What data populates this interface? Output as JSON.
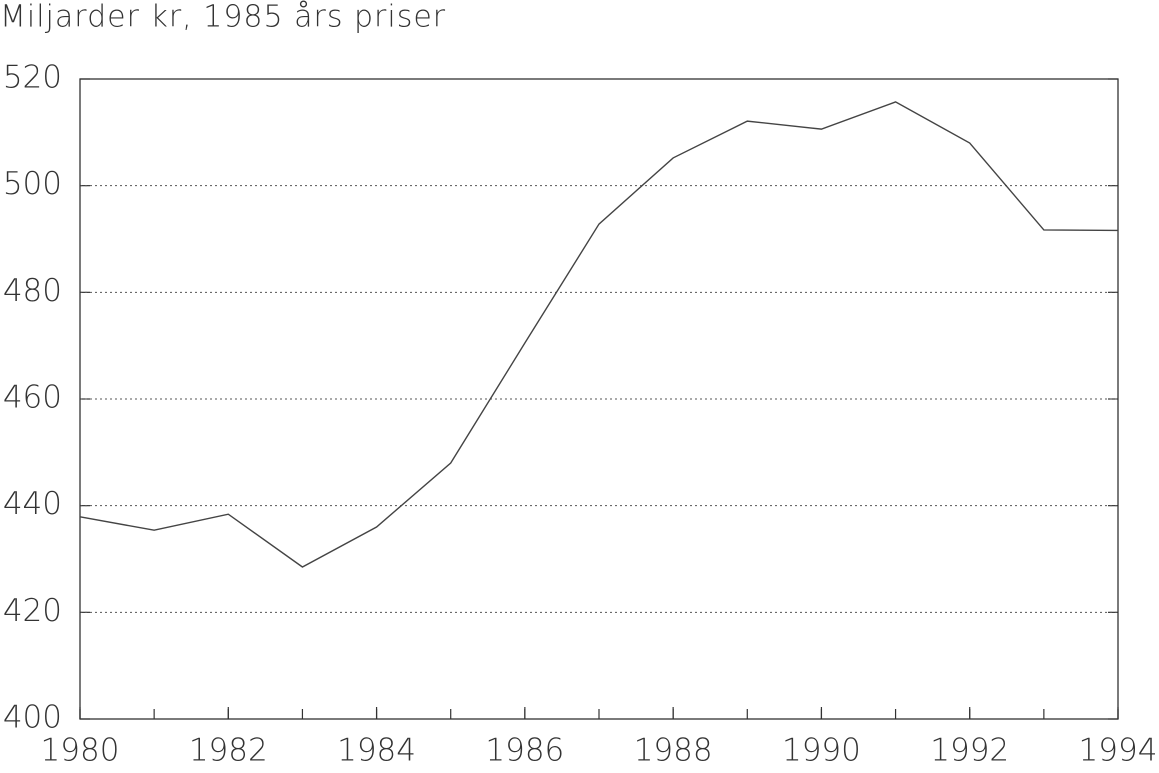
{
  "chart_data": {
    "type": "line",
    "title": "Miljarder kr, 1985 års priser",
    "x": [
      1980,
      1981,
      1982,
      1983,
      1984,
      1985,
      1986,
      1987,
      1988,
      1989,
      1990,
      1991,
      1992,
      1993,
      1994
    ],
    "series": [
      {
        "color": "#444444",
        "values": [
          437.9,
          435.4,
          438.4,
          428.5,
          436,
          448,
          470.5,
          492.8,
          505.2,
          512.1,
          510.6,
          515.7,
          508,
          491.7,
          491.6
        ]
      }
    ],
    "xlim": [
      1980,
      1994
    ],
    "xticks": [
      1980,
      1982,
      1984,
      1986,
      1988,
      1990,
      1992,
      1994
    ],
    "ylim": [
      400,
      520
    ],
    "yticks": [
      400,
      420,
      440,
      460,
      480,
      500,
      520
    ],
    "grid": true
  }
}
